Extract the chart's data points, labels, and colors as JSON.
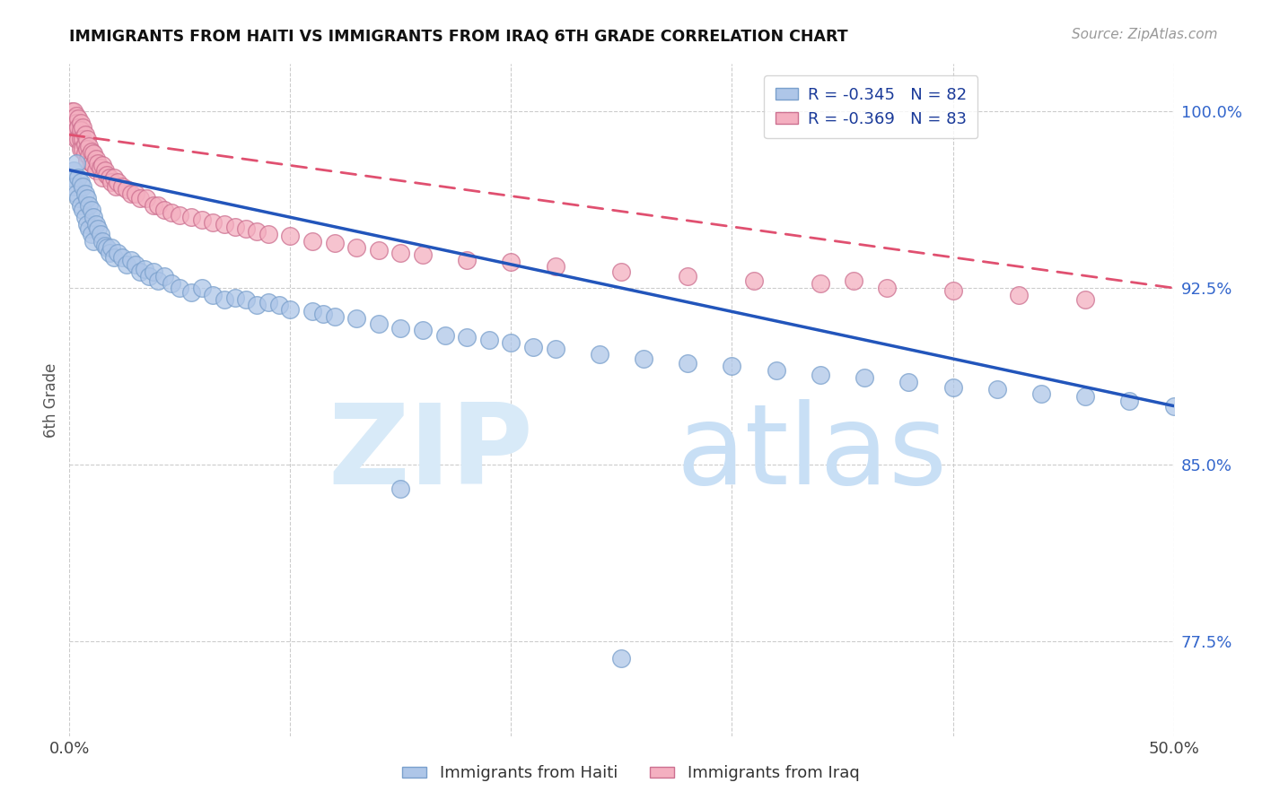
{
  "title": "IMMIGRANTS FROM HAITI VS IMMIGRANTS FROM IRAQ 6TH GRADE CORRELATION CHART",
  "source": "Source: ZipAtlas.com",
  "ylabel": "6th Grade",
  "y_ticks": [
    0.775,
    0.85,
    0.925,
    1.0
  ],
  "y_tick_labels": [
    "77.5%",
    "85.0%",
    "92.5%",
    "100.0%"
  ],
  "xlim": [
    0.0,
    0.5
  ],
  "ylim": [
    0.735,
    1.02
  ],
  "legend_haiti": "R = -0.345   N = 82",
  "legend_iraq": "R = -0.369   N = 83",
  "haiti_color": "#aec6e8",
  "iraq_color": "#f4afc0",
  "haiti_line_color": "#2255bb",
  "iraq_line_color": "#e05070",
  "haiti_edge_color": "#7aa0cc",
  "iraq_edge_color": "#cc7090",
  "watermark_zip_color": "#d8eaf8",
  "watermark_atlas_color": "#c8dff5",
  "haiti_scatter_x": [
    0.001,
    0.002,
    0.002,
    0.003,
    0.003,
    0.004,
    0.004,
    0.005,
    0.005,
    0.006,
    0.006,
    0.007,
    0.007,
    0.008,
    0.008,
    0.009,
    0.009,
    0.01,
    0.01,
    0.011,
    0.011,
    0.012,
    0.013,
    0.014,
    0.015,
    0.016,
    0.017,
    0.018,
    0.019,
    0.02,
    0.022,
    0.024,
    0.026,
    0.028,
    0.03,
    0.032,
    0.034,
    0.036,
    0.038,
    0.04,
    0.043,
    0.046,
    0.05,
    0.055,
    0.06,
    0.065,
    0.07,
    0.075,
    0.08,
    0.085,
    0.09,
    0.095,
    0.1,
    0.11,
    0.115,
    0.12,
    0.13,
    0.14,
    0.15,
    0.16,
    0.17,
    0.18,
    0.19,
    0.2,
    0.21,
    0.22,
    0.24,
    0.26,
    0.28,
    0.3,
    0.32,
    0.34,
    0.36,
    0.38,
    0.4,
    0.42,
    0.44,
    0.46,
    0.48,
    0.5,
    0.15,
    0.25
  ],
  "haiti_scatter_y": [
    0.972,
    0.975,
    0.968,
    0.978,
    0.965,
    0.972,
    0.963,
    0.97,
    0.96,
    0.968,
    0.958,
    0.965,
    0.955,
    0.963,
    0.952,
    0.96,
    0.95,
    0.958,
    0.948,
    0.955,
    0.945,
    0.952,
    0.95,
    0.948,
    0.945,
    0.943,
    0.942,
    0.94,
    0.942,
    0.938,
    0.94,
    0.938,
    0.935,
    0.937,
    0.935,
    0.932,
    0.933,
    0.93,
    0.932,
    0.928,
    0.93,
    0.927,
    0.925,
    0.923,
    0.925,
    0.922,
    0.92,
    0.921,
    0.92,
    0.918,
    0.919,
    0.918,
    0.916,
    0.915,
    0.914,
    0.913,
    0.912,
    0.91,
    0.908,
    0.907,
    0.905,
    0.904,
    0.903,
    0.902,
    0.9,
    0.899,
    0.897,
    0.895,
    0.893,
    0.892,
    0.89,
    0.888,
    0.887,
    0.885,
    0.883,
    0.882,
    0.88,
    0.879,
    0.877,
    0.875,
    0.84,
    0.768
  ],
  "iraq_scatter_x": [
    0.001,
    0.001,
    0.001,
    0.002,
    0.002,
    0.002,
    0.003,
    0.003,
    0.003,
    0.003,
    0.004,
    0.004,
    0.004,
    0.005,
    0.005,
    0.005,
    0.005,
    0.006,
    0.006,
    0.006,
    0.007,
    0.007,
    0.007,
    0.008,
    0.008,
    0.008,
    0.009,
    0.009,
    0.01,
    0.01,
    0.011,
    0.011,
    0.012,
    0.012,
    0.013,
    0.014,
    0.015,
    0.015,
    0.016,
    0.017,
    0.018,
    0.019,
    0.02,
    0.021,
    0.022,
    0.024,
    0.026,
    0.028,
    0.03,
    0.032,
    0.035,
    0.038,
    0.04,
    0.043,
    0.046,
    0.05,
    0.055,
    0.06,
    0.065,
    0.07,
    0.075,
    0.08,
    0.085,
    0.09,
    0.1,
    0.11,
    0.12,
    0.13,
    0.14,
    0.15,
    0.16,
    0.18,
    0.2,
    0.22,
    0.25,
    0.28,
    0.31,
    0.34,
    0.37,
    0.4,
    0.43,
    0.46,
    0.355
  ],
  "iraq_scatter_y": [
    0.997,
    1.0,
    0.995,
    1.0,
    0.997,
    0.993,
    0.998,
    0.995,
    0.992,
    0.988,
    0.997,
    0.993,
    0.988,
    0.995,
    0.992,
    0.988,
    0.984,
    0.993,
    0.988,
    0.984,
    0.99,
    0.986,
    0.982,
    0.988,
    0.984,
    0.979,
    0.985,
    0.981,
    0.983,
    0.978,
    0.982,
    0.977,
    0.98,
    0.975,
    0.978,
    0.976,
    0.977,
    0.972,
    0.975,
    0.973,
    0.972,
    0.97,
    0.972,
    0.968,
    0.97,
    0.968,
    0.967,
    0.965,
    0.965,
    0.963,
    0.963,
    0.96,
    0.96,
    0.958,
    0.957,
    0.956,
    0.955,
    0.954,
    0.953,
    0.952,
    0.951,
    0.95,
    0.949,
    0.948,
    0.947,
    0.945,
    0.944,
    0.942,
    0.941,
    0.94,
    0.939,
    0.937,
    0.936,
    0.934,
    0.932,
    0.93,
    0.928,
    0.927,
    0.925,
    0.924,
    0.922,
    0.92,
    0.928
  ],
  "haiti_trend_x": [
    0.0,
    0.5
  ],
  "haiti_trend_y": [
    0.975,
    0.875
  ],
  "iraq_trend_x": [
    0.0,
    0.5
  ],
  "iraq_trend_y": [
    0.99,
    0.925
  ]
}
